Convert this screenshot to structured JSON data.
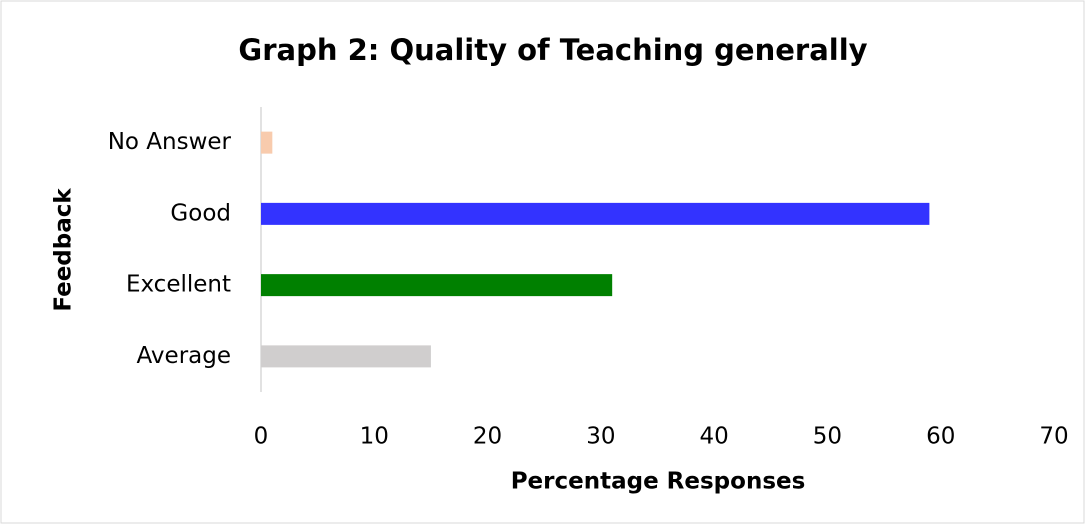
{
  "chart_data": {
    "type": "bar",
    "orientation": "horizontal",
    "title": "Graph 2: Quality of Teaching generally",
    "x_label": "Percentage Responses",
    "y_label": "Feedback",
    "categories": [
      "No Answer",
      "Good",
      "Excellent",
      "Average"
    ],
    "values": [
      1,
      59,
      31,
      15
    ],
    "colors": [
      "#f8cbad",
      "#3333ff",
      "#008000",
      "#d0cece"
    ],
    "xlim": [
      0,
      70
    ],
    "xticks": [
      0,
      10,
      20,
      30,
      40,
      50,
      60,
      70
    ],
    "grid": false
  }
}
